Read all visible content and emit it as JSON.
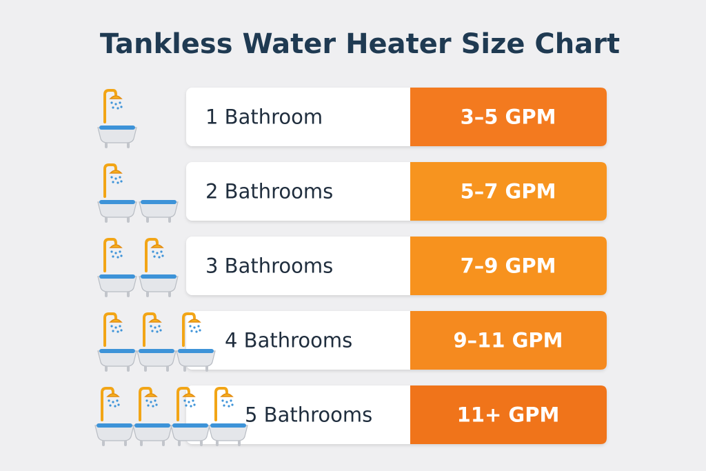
{
  "title": "Tankless Water Heater Size Chart",
  "rows": [
    {
      "label": "1 Bathroom",
      "value": "3–5 GPM"
    },
    {
      "label": "2 Bathrooms",
      "value": "5–7 GPM"
    },
    {
      "label": "3 Bathrooms",
      "value": "7–9 GPM"
    },
    {
      "label": "4 Bathrooms",
      "value": "9–11 GPM"
    },
    {
      "label": "5 Bathrooms",
      "value": "11+ GPM"
    }
  ]
}
